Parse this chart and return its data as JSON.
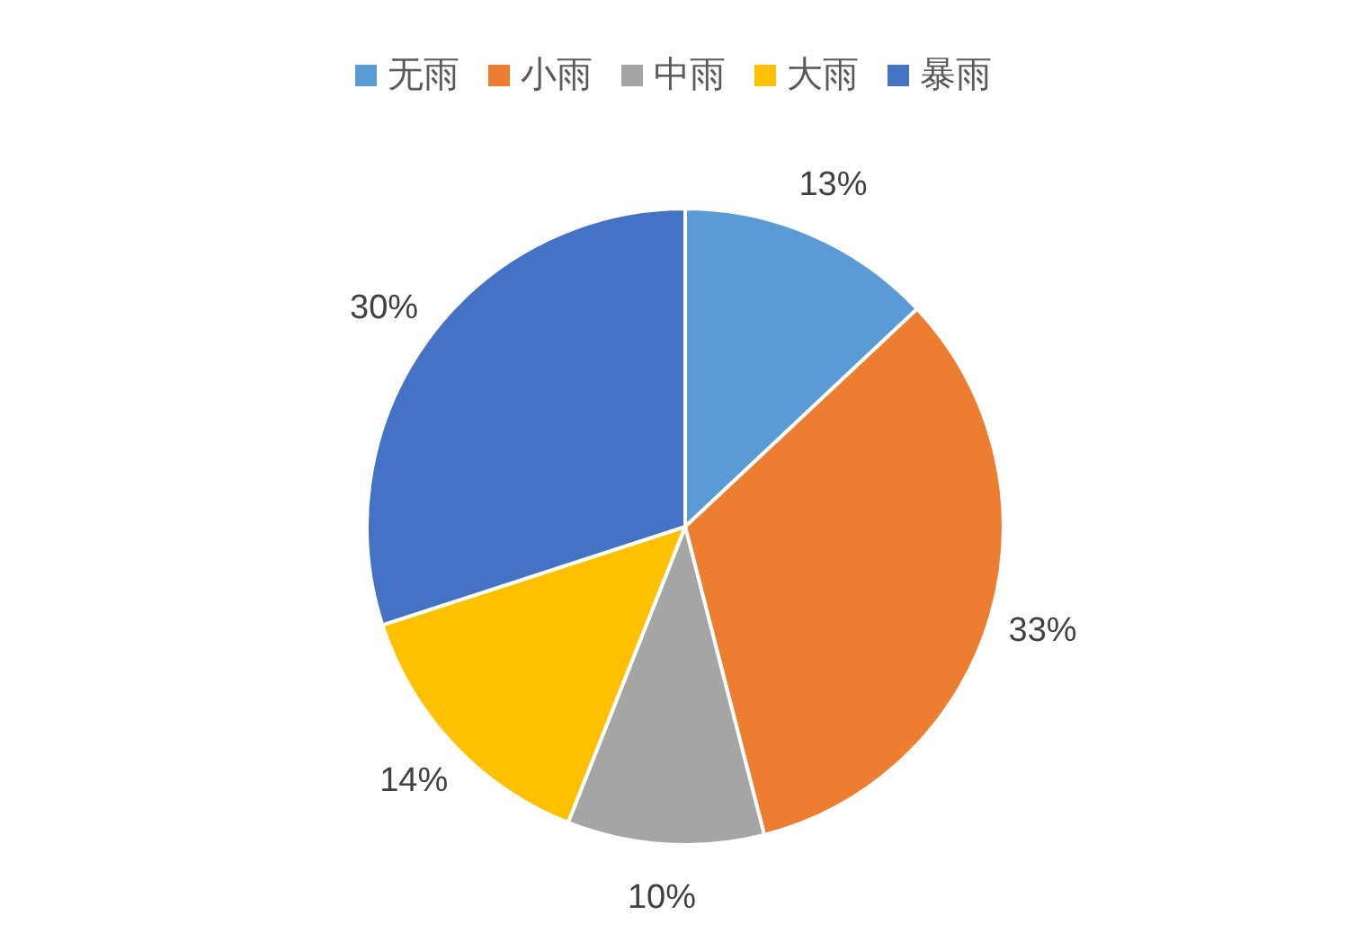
{
  "chart_data": {
    "type": "pie",
    "categories": [
      "无雨",
      "小雨",
      "中雨",
      "大雨",
      "暴雨"
    ],
    "values": [
      13,
      33,
      10,
      14,
      30
    ],
    "colors": [
      "#5b9bd5",
      "#ed7d31",
      "#a5a5a5",
      "#ffc000",
      "#4472c4"
    ],
    "value_labels": [
      "13%",
      "33%",
      "10%",
      "14%",
      "30%"
    ],
    "legend": "top"
  }
}
